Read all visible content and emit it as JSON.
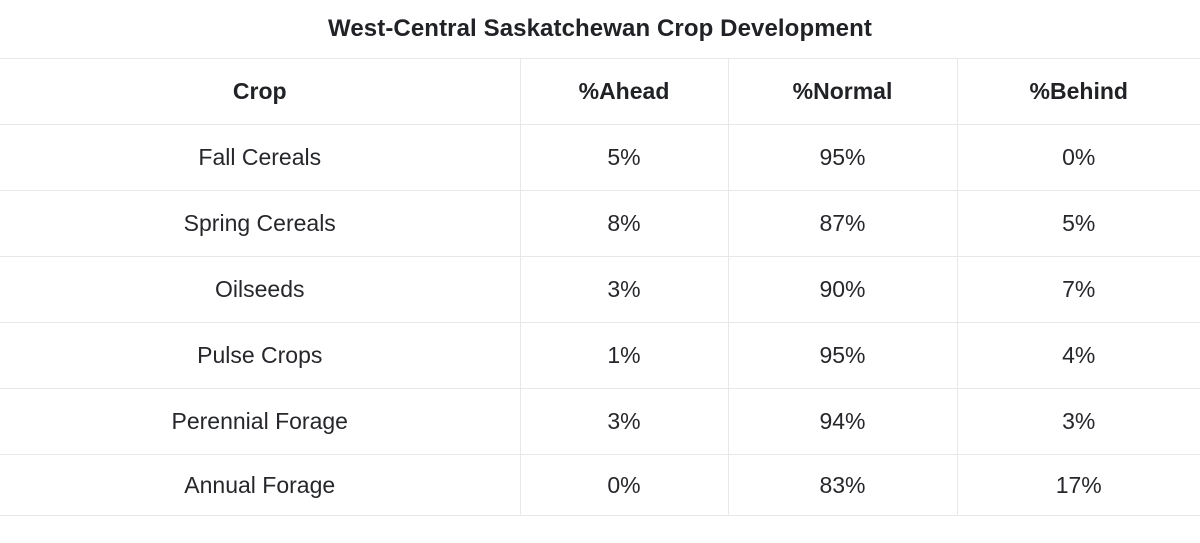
{
  "title": "West-Central Saskatchewan Crop Development",
  "colors": {
    "background": "#ffffff",
    "text": "#26272b",
    "border": "#e8e8e8"
  },
  "table": {
    "columns": [
      "Crop",
      "%Ahead",
      "%Normal",
      "%Behind"
    ],
    "rows": [
      [
        "Fall Cereals",
        "5%",
        "95%",
        "0%"
      ],
      [
        "Spring Cereals",
        "8%",
        "87%",
        "5%"
      ],
      [
        "Oilseeds",
        "3%",
        "90%",
        "7%"
      ],
      [
        "Pulse Crops",
        "1%",
        "95%",
        "4%"
      ],
      [
        "Perennial Forage",
        "3%",
        "94%",
        "3%"
      ],
      [
        "Annual Forage",
        "0%",
        "83%",
        "17%"
      ]
    ]
  },
  "chart_data": {
    "type": "table",
    "title": "West-Central Saskatchewan Crop Development",
    "columns": [
      "Crop",
      "%Ahead",
      "%Normal",
      "%Behind"
    ],
    "units": "percent",
    "rows": [
      {
        "crop": "Fall Cereals",
        "ahead": 5,
        "normal": 95,
        "behind": 0
      },
      {
        "crop": "Spring Cereals",
        "ahead": 8,
        "normal": 87,
        "behind": 5
      },
      {
        "crop": "Oilseeds",
        "ahead": 3,
        "normal": 90,
        "behind": 7
      },
      {
        "crop": "Pulse Crops",
        "ahead": 1,
        "normal": 95,
        "behind": 4
      },
      {
        "crop": "Perennial Forage",
        "ahead": 3,
        "normal": 94,
        "behind": 3
      },
      {
        "crop": "Annual Forage",
        "ahead": 0,
        "normal": 83,
        "behind": 17
      }
    ]
  }
}
